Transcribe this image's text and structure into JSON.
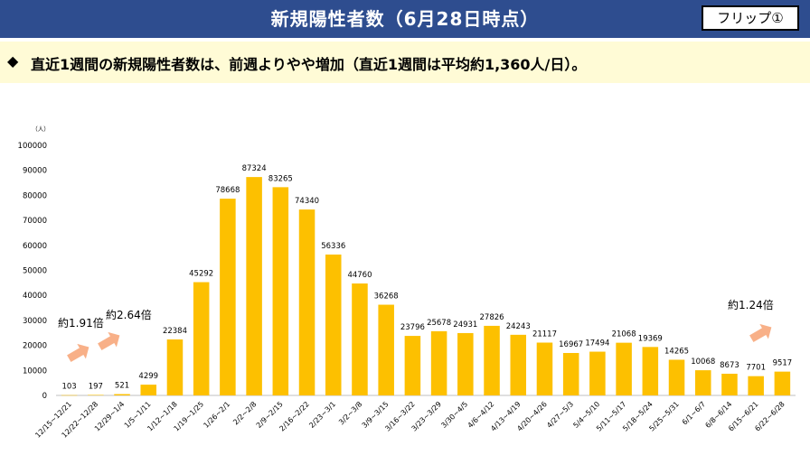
{
  "header": {
    "title": "新規陽性者数（6月28日時点）",
    "badge": "フリップ①"
  },
  "summary": {
    "bullet_icon": "diamond-bullet",
    "text": "直近1週間の新規陽性者数は、前週よりやや増加（直近1週間は平均約1,360人/日）。"
  },
  "annotations": [
    {
      "label": "約1.91倍",
      "icon": "arrow-right-icon"
    },
    {
      "label": "約2.64倍",
      "icon": "arrow-up-right-icon"
    },
    {
      "label": "約1.24倍",
      "icon": "arrow-up-right-icon"
    }
  ],
  "colors": {
    "bar": "#fdc000",
    "header": "#2e4d8f",
    "summary_bg": "#fffbd6",
    "arrow": "#f8b088"
  },
  "chart_data": {
    "type": "bar",
    "unit_label": "（人）",
    "ylim": [
      0,
      100000
    ],
    "yticks": [
      0,
      10000,
      20000,
      30000,
      40000,
      50000,
      60000,
      70000,
      80000,
      90000,
      100000
    ],
    "grid": false,
    "categories": [
      "12/15~12/21",
      "12/22~12/28",
      "12/29~1/4",
      "1/5~1/11",
      "1/12~1/18",
      "1/19~1/25",
      "1/26~2/1",
      "2/2~2/8",
      "2/9~2/15",
      "2/16~2/22",
      "2/23~3/1",
      "3/2~3/8",
      "3/9~3/15",
      "3/16~3/22",
      "3/23~3/29",
      "3/30~4/5",
      "4/6~4/12",
      "4/13~4/19",
      "4/20~4/26",
      "4/27~5/3",
      "5/4~5/10",
      "5/11~5/17",
      "5/18~5/24",
      "5/25~5/31",
      "6/1~6/7",
      "6/8~6/14",
      "6/15~6/21",
      "6/22~6/28"
    ],
    "values": [
      103,
      197,
      521,
      4299,
      22384,
      45292,
      78668,
      87324,
      83265,
      74340,
      56336,
      44760,
      36268,
      23796,
      25678,
      24931,
      27826,
      24243,
      21117,
      16967,
      17494,
      21068,
      19369,
      14265,
      10068,
      8673,
      7701,
      9517
    ]
  }
}
